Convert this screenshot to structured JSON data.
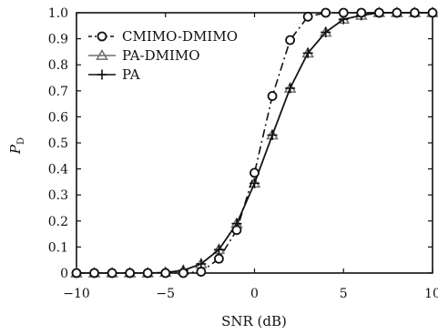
{
  "chart_data": {
    "type": "line",
    "title": "",
    "xlabel": "SNR (dB)",
    "ylabel": "P",
    "ylabel_subscript": "D",
    "xlim": [
      -10,
      10
    ],
    "ylim": [
      0,
      1.0
    ],
    "xticks": [
      -10,
      -5,
      0,
      5,
      10
    ],
    "xtick_labels": [
      "−10",
      "−5",
      "0",
      "5",
      "10"
    ],
    "yticks": [
      0,
      0.1,
      0.2,
      0.3,
      0.4,
      0.5,
      0.6,
      0.7,
      0.8,
      0.9,
      1.0
    ],
    "ytick_labels": [
      "0",
      "0.1",
      "0.2",
      "0.3",
      "0.4",
      "0.5",
      "0.6",
      "0.7",
      "0.8",
      "0.9",
      "1.0"
    ],
    "grid": false,
    "legend_position": "top-left",
    "series": [
      {
        "name": "CMIMO-DMIMO",
        "marker": "circle",
        "line_style": "dashdot",
        "color": "#111111",
        "x": [
          -10,
          -9,
          -8,
          -7,
          -6,
          -5,
          -4,
          -3,
          -2,
          -1,
          0,
          1,
          2,
          3,
          4,
          5,
          6,
          7,
          8,
          9,
          10
        ],
        "y": [
          0,
          0,
          0,
          0,
          0,
          0,
          0,
          0.005,
          0.055,
          0.165,
          0.385,
          0.68,
          0.895,
          0.985,
          1.0,
          1.0,
          1.0,
          1.0,
          1.0,
          1.0,
          1.0
        ]
      },
      {
        "name": "PA-DMIMO",
        "marker": "triangle",
        "line_style": "solid",
        "color": "#6e6e6e",
        "x": [
          -10,
          -9,
          -8,
          -7,
          -6,
          -5,
          -4,
          -3,
          -2,
          -1,
          0,
          1,
          2,
          3,
          4,
          5,
          6,
          7,
          8,
          9,
          10
        ],
        "y": [
          0,
          0,
          0,
          0,
          0,
          0.002,
          0.01,
          0.035,
          0.09,
          0.19,
          0.345,
          0.53,
          0.71,
          0.845,
          0.925,
          0.975,
          0.99,
          1.0,
          1.0,
          1.0,
          1.0
        ]
      },
      {
        "name": "PA",
        "marker": "plus",
        "line_style": "solid",
        "color": "#111111",
        "x": [
          -10,
          -9,
          -8,
          -7,
          -6,
          -5,
          -4,
          -3,
          -2,
          -1,
          0,
          1,
          2,
          3,
          4,
          5,
          6,
          7,
          8,
          9,
          10
        ],
        "y": [
          0,
          0,
          0,
          0,
          0,
          0.002,
          0.01,
          0.035,
          0.09,
          0.19,
          0.345,
          0.53,
          0.71,
          0.845,
          0.925,
          0.975,
          0.99,
          1.0,
          1.0,
          1.0,
          1.0
        ]
      }
    ]
  }
}
